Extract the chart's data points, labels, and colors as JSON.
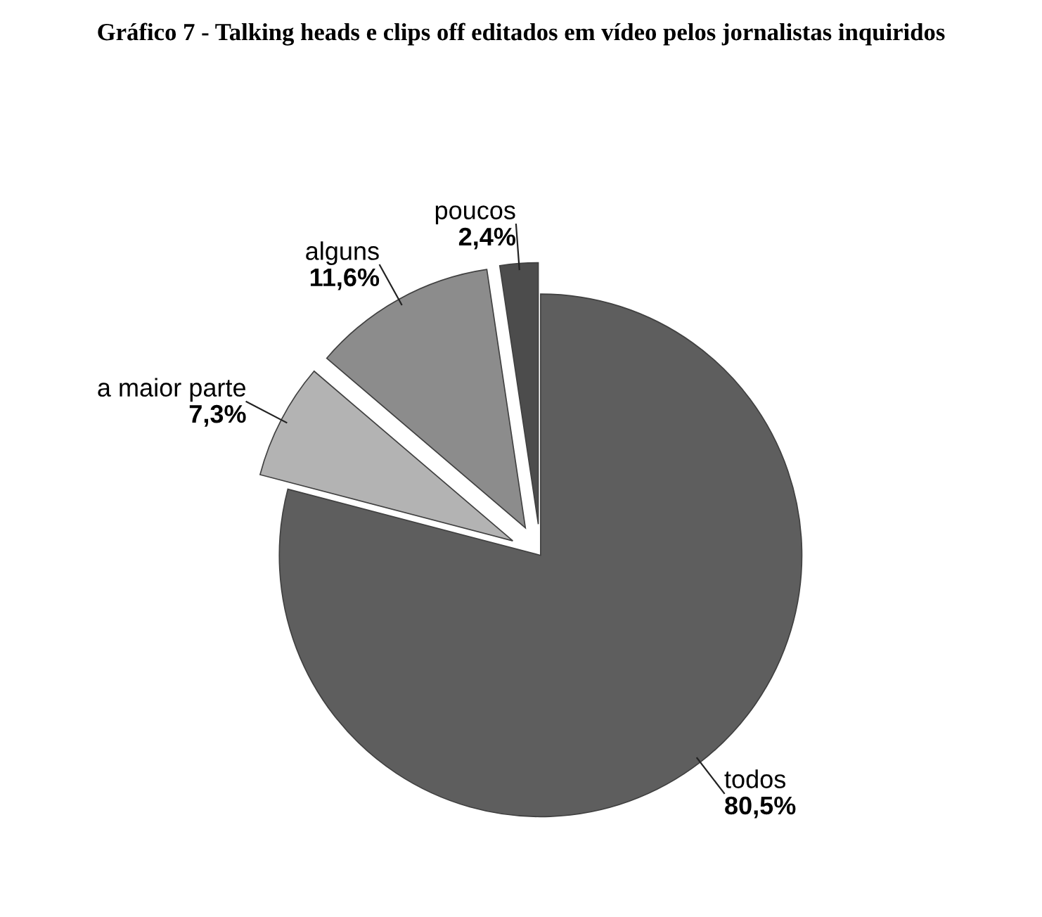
{
  "chart_data": {
    "type": "pie",
    "title": "Gráfico 7 - Talking heads e clips off editados em vídeo pelos jornalistas inquiridos",
    "categories": [
      "todos",
      "a maior parte",
      "alguns",
      "poucos"
    ],
    "values": [
      80.5,
      7.3,
      11.6,
      2.4
    ],
    "value_labels": [
      "80,5%",
      "7,3%",
      "11,6%",
      "2,4%"
    ],
    "colors": [
      "#5e5e5e",
      "#b3b3b3",
      "#8c8c8c",
      "#4c4c4c"
    ],
    "legend": false
  }
}
